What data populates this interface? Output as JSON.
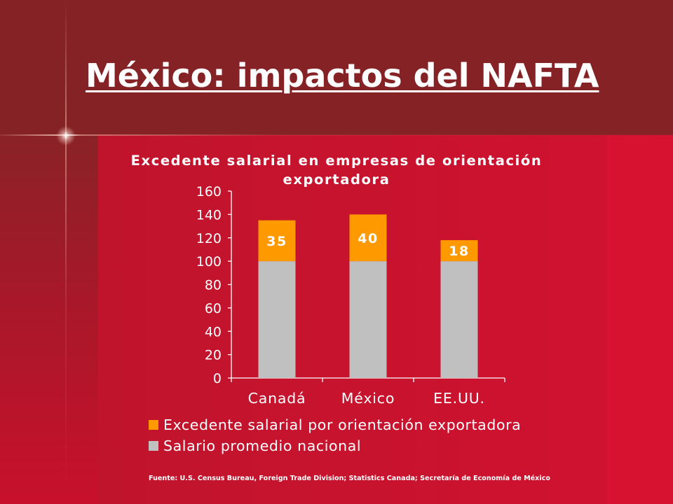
{
  "slide": {
    "title": "México: impactos del NAFTA",
    "source": "Fuente: U.S. Census Bureau, Foreign Trade Division; Statistics Canada; Secretaría de Economía de México"
  },
  "colors": {
    "excedente": "#ff9900",
    "salario": "#c0c0c0",
    "text": "#ffffff",
    "background_top": "#852226",
    "background_main": "#c8122a"
  },
  "chart_data": {
    "type": "bar",
    "stacked": true,
    "title": "Excedente salarial en empresas de orientación exportadora",
    "categories": [
      "Canadá",
      "México",
      "EE.UU."
    ],
    "series": [
      {
        "name": "Salario promedio nacional",
        "values": [
          100,
          100,
          100
        ],
        "color": "#c0c0c0",
        "labels_shown": false
      },
      {
        "name": "Excedente salarial por orientación exportadora",
        "values": [
          35,
          40,
          18
        ],
        "color": "#ff9900",
        "labels_shown": true
      }
    ],
    "ylim": [
      0,
      160
    ],
    "yticks": [
      0,
      20,
      40,
      60,
      80,
      100,
      120,
      140,
      160
    ],
    "grid": false,
    "legend": {
      "position": "bottom",
      "items": [
        {
          "label": "Excedente salarial por orientación exportadora",
          "color": "#ff9900"
        },
        {
          "label": "Salario promedio nacional",
          "color": "#c0c0c0"
        }
      ]
    }
  }
}
